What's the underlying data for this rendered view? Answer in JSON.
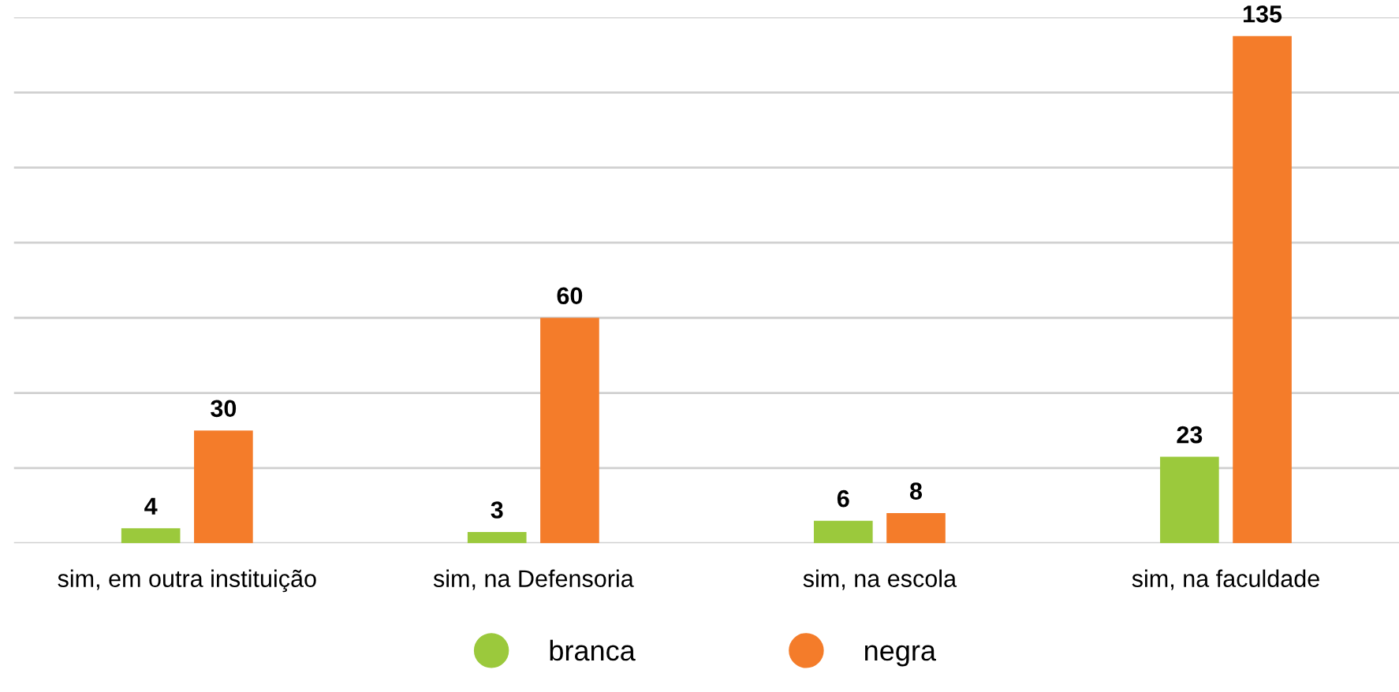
{
  "chart_data": {
    "type": "bar",
    "categories": [
      "sim, em outra instituição",
      "sim, na Defensoria",
      "sim, na escola",
      "sim, na faculdade"
    ],
    "series": [
      {
        "name": "branca",
        "color": "#9bc93c",
        "values": [
          4,
          3,
          6,
          23
        ]
      },
      {
        "name": "negra",
        "color": "#f47c2a",
        "values": [
          30,
          60,
          8,
          135
        ]
      }
    ],
    "ylim": [
      0,
      140
    ],
    "yticks": [
      {
        "value": 0,
        "label": null
      },
      {
        "value": 20,
        "label": null
      },
      {
        "value": 40,
        "label": null
      },
      {
        "value": 60,
        "label": null
      },
      {
        "value": 80,
        "label": null
      },
      {
        "value": 100,
        "label": null
      },
      {
        "value": 120,
        "label": null
      },
      {
        "value": 140,
        "label": null
      }
    ],
    "grid": "y",
    "legend": "bottom",
    "data_labels": true
  }
}
